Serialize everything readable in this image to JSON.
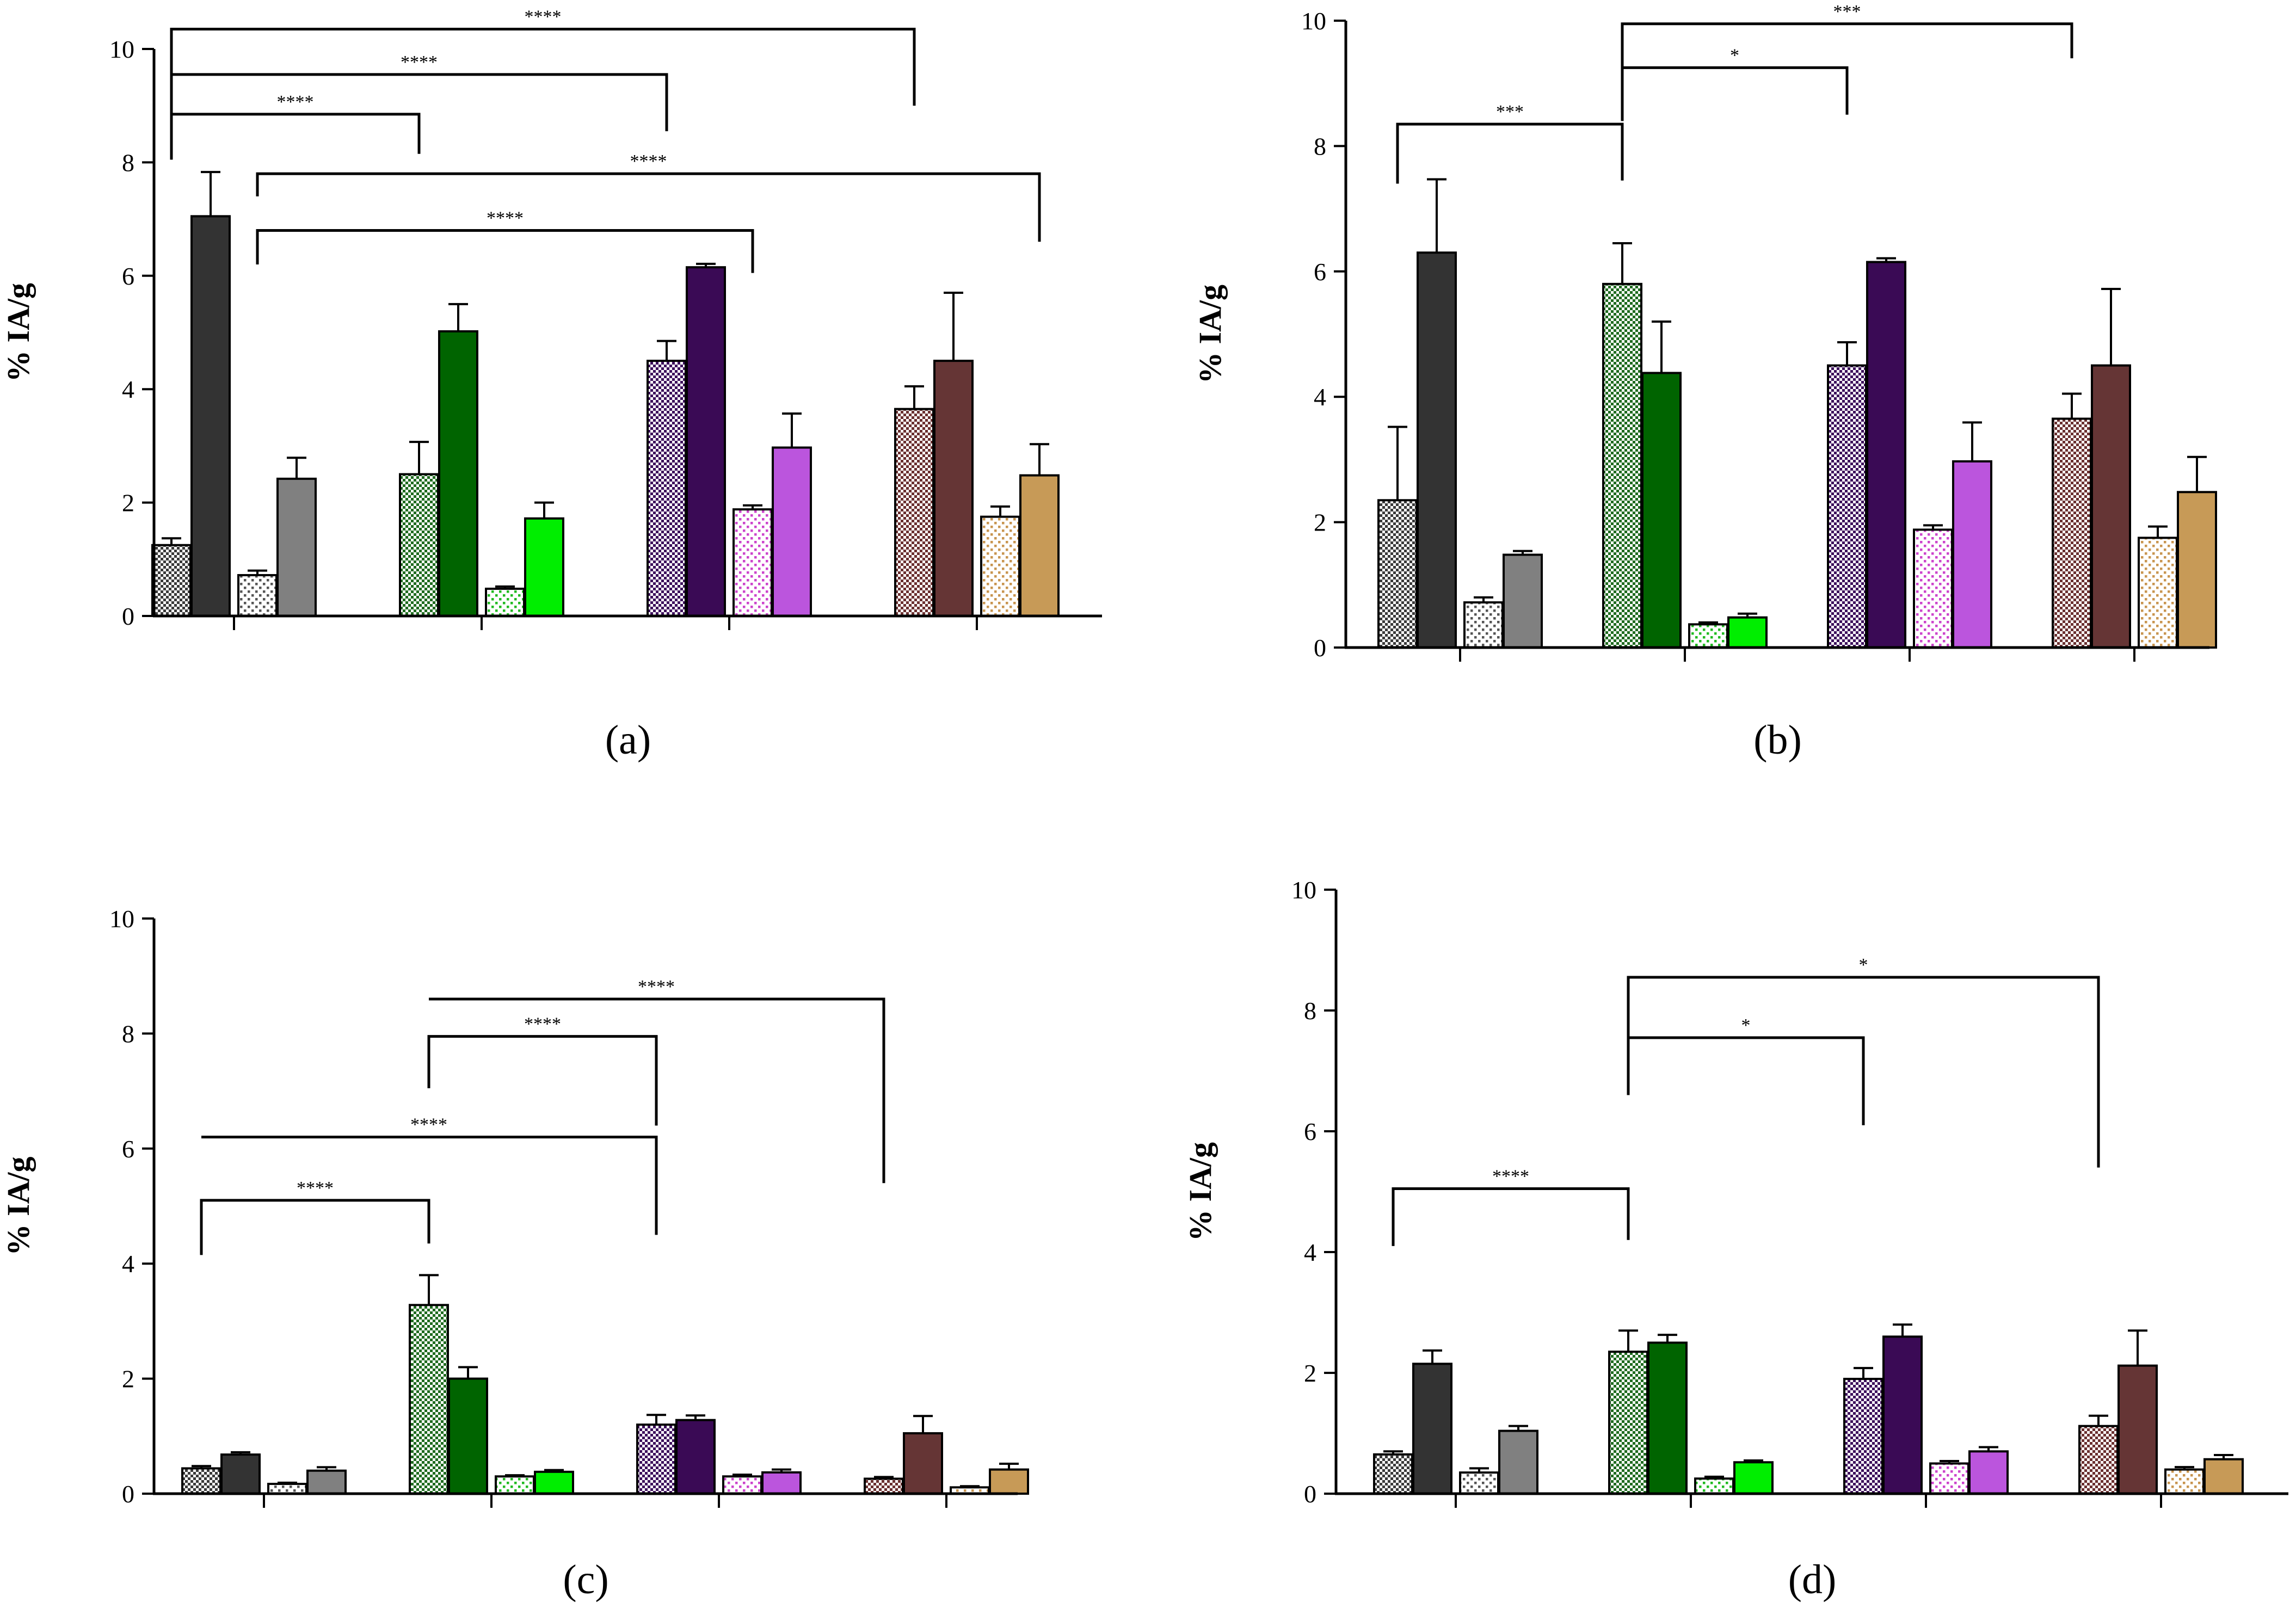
{
  "chart_data": [
    {
      "id": "a",
      "type": "bar",
      "panel_label": "(a)",
      "ylabel": "% IA/g",
      "ylim": [
        0,
        10
      ],
      "yticks": [
        0,
        2,
        4,
        6,
        8,
        10
      ],
      "groups": [
        {
          "bars": [
            {
              "value": 1.25,
              "err": 0.12,
              "color": "#3a3a3a",
              "pattern": "dense"
            },
            {
              "value": 7.05,
              "err": 0.78,
              "color": "#333333",
              "pattern": "solid"
            },
            {
              "value": 0.72,
              "err": 0.08,
              "color": "#555555",
              "pattern": "sparse"
            },
            {
              "value": 2.42,
              "err": 0.37,
              "color": "#808080",
              "pattern": "solid"
            }
          ]
        },
        {
          "bars": [
            {
              "value": 2.5,
              "err": 0.57,
              "color": "#1f6b1f",
              "pattern": "dense"
            },
            {
              "value": 5.02,
              "err": 0.48,
              "color": "#006400",
              "pattern": "solid"
            },
            {
              "value": 0.48,
              "err": 0.04,
              "color": "#22bb22",
              "pattern": "sparse"
            },
            {
              "value": 1.72,
              "err": 0.28,
              "color": "#00ee00",
              "pattern": "solid"
            }
          ]
        },
        {
          "bars": [
            {
              "value": 4.5,
              "err": 0.35,
              "color": "#3d0f5c",
              "pattern": "dense"
            },
            {
              "value": 6.15,
              "err": 0.06,
              "color": "#3a0a55",
              "pattern": "solid"
            },
            {
              "value": 1.88,
              "err": 0.07,
              "color": "#cc44cc",
              "pattern": "sparse"
            },
            {
              "value": 2.97,
              "err": 0.6,
              "color": "#bb55dd",
              "pattern": "solid"
            }
          ]
        },
        {
          "bars": [
            {
              "value": 3.65,
              "err": 0.4,
              "color": "#6b3030",
              "pattern": "dense"
            },
            {
              "value": 4.5,
              "err": 1.2,
              "color": "#653535",
              "pattern": "solid"
            },
            {
              "value": 1.75,
              "err": 0.18,
              "color": "#c8954f",
              "pattern": "sparse"
            },
            {
              "value": 2.48,
              "err": 0.55,
              "color": "#c79a57",
              "pattern": "solid"
            }
          ]
        }
      ],
      "brackets": [
        {
          "from": [
            0,
            0
          ],
          "to": [
            1,
            0
          ],
          "label": "****",
          "level": 8.85,
          "left_end": 8.05,
          "right_end": 8.15
        },
        {
          "from": [
            0,
            0
          ],
          "to": [
            2,
            0
          ],
          "label": "****",
          "level": 9.55,
          "left_end": 8.05,
          "right_end": 8.55
        },
        {
          "from": [
            0,
            0
          ],
          "to": [
            3,
            0
          ],
          "label": "****",
          "level": 10.35,
          "left_end": 8.05,
          "right_end": 9.0
        },
        {
          "from": [
            0,
            2
          ],
          "to": [
            3,
            3
          ],
          "label": "****",
          "level": 7.8,
          "left_end": 7.4,
          "right_end": 6.6
        },
        {
          "from": [
            0,
            2
          ],
          "to": [
            2,
            2
          ],
          "label": "****",
          "level": 6.8,
          "left_end": 6.2,
          "right_end": 6.05
        }
      ]
    },
    {
      "id": "b",
      "type": "bar",
      "panel_label": "(b)",
      "ylabel": "% IA/g",
      "ylim": [
        0,
        10
      ],
      "yticks": [
        0,
        2,
        4,
        6,
        8,
        10
      ],
      "groups": [
        {
          "bars": [
            {
              "value": 2.35,
              "err": 1.17,
              "color": "#3a3a3a",
              "pattern": "dense"
            },
            {
              "value": 6.3,
              "err": 1.17,
              "color": "#333333",
              "pattern": "solid"
            },
            {
              "value": 0.72,
              "err": 0.08,
              "color": "#555555",
              "pattern": "sparse"
            },
            {
              "value": 1.48,
              "err": 0.06,
              "color": "#808080",
              "pattern": "solid"
            }
          ]
        },
        {
          "bars": [
            {
              "value": 5.8,
              "err": 0.65,
              "color": "#1f6b1f",
              "pattern": "dense"
            },
            {
              "value": 4.38,
              "err": 0.82,
              "color": "#006400",
              "pattern": "solid"
            },
            {
              "value": 0.37,
              "err": 0.03,
              "color": "#22bb22",
              "pattern": "sparse"
            },
            {
              "value": 0.48,
              "err": 0.06,
              "color": "#00ee00",
              "pattern": "solid"
            }
          ]
        },
        {
          "bars": [
            {
              "value": 4.5,
              "err": 0.37,
              "color": "#3d0f5c",
              "pattern": "dense"
            },
            {
              "value": 6.15,
              "err": 0.06,
              "color": "#3a0a55",
              "pattern": "solid"
            },
            {
              "value": 1.88,
              "err": 0.07,
              "color": "#cc44cc",
              "pattern": "sparse"
            },
            {
              "value": 2.97,
              "err": 0.62,
              "color": "#bb55dd",
              "pattern": "solid"
            }
          ]
        },
        {
          "bars": [
            {
              "value": 3.65,
              "err": 0.4,
              "color": "#6b3030",
              "pattern": "dense"
            },
            {
              "value": 4.5,
              "err": 1.22,
              "color": "#653535",
              "pattern": "solid"
            },
            {
              "value": 1.75,
              "err": 0.18,
              "color": "#c8954f",
              "pattern": "sparse"
            },
            {
              "value": 2.48,
              "err": 0.56,
              "color": "#c79a57",
              "pattern": "solid"
            }
          ]
        }
      ],
      "brackets": [
        {
          "from": [
            0,
            0
          ],
          "to": [
            1,
            0
          ],
          "label": "***",
          "level": 8.35,
          "left_end": 7.4,
          "right_end": 7.45
        },
        {
          "from": [
            1,
            0
          ],
          "to": [
            2,
            0
          ],
          "label": "*",
          "level": 9.25,
          "left_end": 8.4,
          "right_end": 8.5
        },
        {
          "from": [
            1,
            0
          ],
          "to": [
            3,
            0
          ],
          "label": "***",
          "level": 9.95,
          "left_end": 9.25,
          "right_end": 9.4
        }
      ]
    },
    {
      "id": "c",
      "type": "bar",
      "panel_label": "(c)",
      "ylabel": "% IA/g",
      "ylim": [
        0,
        10
      ],
      "yticks": [
        0,
        2,
        4,
        6,
        8,
        10
      ],
      "groups": [
        {
          "bars": [
            {
              "value": 0.44,
              "err": 0.04,
              "color": "#3a3a3a",
              "pattern": "dense"
            },
            {
              "value": 0.68,
              "err": 0.04,
              "color": "#333333",
              "pattern": "solid"
            },
            {
              "value": 0.17,
              "err": 0.02,
              "color": "#555555",
              "pattern": "sparse"
            },
            {
              "value": 0.4,
              "err": 0.06,
              "color": "#808080",
              "pattern": "solid"
            }
          ]
        },
        {
          "bars": [
            {
              "value": 3.28,
              "err": 0.52,
              "color": "#1f6b1f",
              "pattern": "dense"
            },
            {
              "value": 2.0,
              "err": 0.2,
              "color": "#006400",
              "pattern": "solid"
            },
            {
              "value": 0.3,
              "err": 0.02,
              "color": "#22bb22",
              "pattern": "sparse"
            },
            {
              "value": 0.38,
              "err": 0.03,
              "color": "#00ee00",
              "pattern": "solid"
            }
          ]
        },
        {
          "bars": [
            {
              "value": 1.2,
              "err": 0.17,
              "color": "#3d0f5c",
              "pattern": "dense"
            },
            {
              "value": 1.28,
              "err": 0.08,
              "color": "#3a0a55",
              "pattern": "solid"
            },
            {
              "value": 0.3,
              "err": 0.03,
              "color": "#cc44cc",
              "pattern": "sparse"
            },
            {
              "value": 0.37,
              "err": 0.05,
              "color": "#bb55dd",
              "pattern": "solid"
            }
          ]
        },
        {
          "bars": [
            {
              "value": 0.26,
              "err": 0.03,
              "color": "#6b3030",
              "pattern": "dense"
            },
            {
              "value": 1.05,
              "err": 0.3,
              "color": "#653535",
              "pattern": "solid"
            },
            {
              "value": 0.11,
              "err": 0.02,
              "color": "#c8954f",
              "pattern": "sparse"
            },
            {
              "value": 0.42,
              "err": 0.1,
              "color": "#c79a57",
              "pattern": "solid"
            }
          ]
        }
      ],
      "brackets": [
        {
          "from": [
            0,
            0
          ],
          "to": [
            1,
            0
          ],
          "label": "****",
          "level": 5.1,
          "left_end": 4.15,
          "right_end": 4.35
        },
        {
          "from": [
            0,
            0
          ],
          "to": [
            2,
            0
          ],
          "label": "****",
          "level": 6.2,
          "left_end": 6.2,
          "right_end": 4.5
        },
        {
          "from": [
            1,
            0
          ],
          "to": [
            2,
            0
          ],
          "label": "****",
          "level": 7.95,
          "left_end": 7.05,
          "right_end": 6.4
        },
        {
          "from": [
            1,
            0
          ],
          "to": [
            3,
            0
          ],
          "label": "****",
          "level": 8.6,
          "left_end": 8.6,
          "right_end": 5.4
        }
      ]
    },
    {
      "id": "d",
      "type": "bar",
      "panel_label": "(d)",
      "ylabel": "% IA/g",
      "ylim": [
        0,
        10
      ],
      "yticks": [
        0,
        2,
        4,
        6,
        8,
        10
      ],
      "groups": [
        {
          "bars": [
            {
              "value": 0.65,
              "err": 0.05,
              "color": "#3a3a3a",
              "pattern": "dense"
            },
            {
              "value": 2.15,
              "err": 0.22,
              "color": "#333333",
              "pattern": "solid"
            },
            {
              "value": 0.35,
              "err": 0.07,
              "color": "#555555",
              "pattern": "sparse"
            },
            {
              "value": 1.04,
              "err": 0.08,
              "color": "#808080",
              "pattern": "solid"
            }
          ]
        },
        {
          "bars": [
            {
              "value": 2.35,
              "err": 0.35,
              "color": "#1f6b1f",
              "pattern": "dense"
            },
            {
              "value": 2.5,
              "err": 0.13,
              "color": "#006400",
              "pattern": "solid"
            },
            {
              "value": 0.25,
              "err": 0.03,
              "color": "#22bb22",
              "pattern": "sparse"
            },
            {
              "value": 0.52,
              "err": 0.03,
              "color": "#00ee00",
              "pattern": "solid"
            }
          ]
        },
        {
          "bars": [
            {
              "value": 1.9,
              "err": 0.18,
              "color": "#3d0f5c",
              "pattern": "dense"
            },
            {
              "value": 2.6,
              "err": 0.2,
              "color": "#3a0a55",
              "pattern": "solid"
            },
            {
              "value": 0.5,
              "err": 0.04,
              "color": "#cc44cc",
              "pattern": "sparse"
            },
            {
              "value": 0.7,
              "err": 0.07,
              "color": "#bb55dd",
              "pattern": "solid"
            }
          ]
        },
        {
          "bars": [
            {
              "value": 1.12,
              "err": 0.17,
              "color": "#6b3030",
              "pattern": "dense"
            },
            {
              "value": 2.12,
              "err": 0.58,
              "color": "#653535",
              "pattern": "solid"
            },
            {
              "value": 0.4,
              "err": 0.04,
              "color": "#c8954f",
              "pattern": "sparse"
            },
            {
              "value": 0.57,
              "err": 0.07,
              "color": "#c79a57",
              "pattern": "solid"
            }
          ]
        }
      ],
      "brackets": [
        {
          "from": [
            0,
            0
          ],
          "to": [
            1,
            0
          ],
          "label": "****",
          "level": 5.05,
          "left_end": 4.1,
          "right_end": 4.2
        },
        {
          "from": [
            1,
            0
          ],
          "to": [
            2,
            0
          ],
          "label": "*",
          "level": 7.55,
          "left_end": 6.6,
          "right_end": 6.1
        },
        {
          "from": [
            1,
            0
          ],
          "to": [
            3,
            0
          ],
          "label": "*",
          "level": 8.55,
          "left_end": 6.6,
          "right_end": 5.4
        }
      ]
    }
  ]
}
